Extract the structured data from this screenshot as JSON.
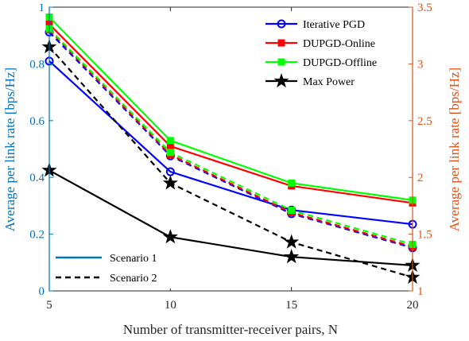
{
  "chart_data": {
    "type": "line",
    "x": [
      5,
      10,
      15,
      20
    ],
    "xlabel": "Number of transmitter-receiver pairs, N",
    "xlim": [
      5,
      20
    ],
    "xticks": [
      "5",
      "10",
      "15",
      "20"
    ],
    "ylabel_left": "Average per link rate [bps/Hz]",
    "ylim_left": [
      0,
      1
    ],
    "yticks_left": [
      "0",
      "0.2",
      "0.4",
      "0.6",
      "0.8",
      "1"
    ],
    "ylabel_right": "Average per link rate [bps/Hz]",
    "ylim_right": [
      1,
      3.5
    ],
    "yticks_right": [
      "1",
      "1.5",
      "2",
      "2.5",
      "3",
      "3.5"
    ],
    "colors": {
      "left_axis": "#0072BD",
      "right_axis": "#D95319",
      "iterative_pgd": "#0000FF",
      "dupgd_online": "#FF0000",
      "dupgd_offline": "#00FF00",
      "max_power": "#000000"
    },
    "legend_methods": [
      {
        "name": "Iterative PGD",
        "color": "#0000FF",
        "marker": "circle"
      },
      {
        "name": "DUPGD-Online",
        "color": "#FF0000",
        "marker": "square"
      },
      {
        "name": "DUPGD-Offline",
        "color": "#00FF00",
        "marker": "square"
      },
      {
        "name": "Max Power",
        "color": "#000000",
        "marker": "star"
      }
    ],
    "legend_scenarios": [
      {
        "name": "Scenario 1",
        "style": "solid"
      },
      {
        "name": "Scenario 2",
        "style": "dashed"
      }
    ],
    "legend_placement_methods": "top-right",
    "legend_placement_scenarios": "bottom-left",
    "series": [
      {
        "method": "Iterative PGD",
        "scenario": "Scenario 1",
        "axis": "left",
        "marker": "circle",
        "color": "#0000FF",
        "dashed": false,
        "values": [
          0.81,
          0.42,
          0.285,
          0.235
        ]
      },
      {
        "method": "DUPGD-Online",
        "scenario": "Scenario 1",
        "axis": "left",
        "marker": "square",
        "color": "#FF0000",
        "dashed": false,
        "values": [
          0.94,
          0.51,
          0.37,
          0.31
        ]
      },
      {
        "method": "DUPGD-Offline",
        "scenario": "Scenario 1",
        "axis": "left",
        "marker": "square",
        "color": "#00FF00",
        "dashed": false,
        "values": [
          0.965,
          0.53,
          0.38,
          0.32
        ]
      },
      {
        "method": "Max Power",
        "scenario": "Scenario 1",
        "axis": "left",
        "marker": "star",
        "color": "#000000",
        "dashed": false,
        "values": [
          0.425,
          0.19,
          0.12,
          0.09
        ]
      },
      {
        "method": "Iterative PGD",
        "scenario": "Scenario 2",
        "axis": "right",
        "marker": "circle",
        "color": "#0000FF",
        "dashed": true,
        "values": [
          3.28,
          2.19,
          1.68,
          1.38
        ]
      },
      {
        "method": "DUPGD-Online",
        "scenario": "Scenario 2",
        "axis": "right",
        "marker": "square",
        "color": "#FF0000",
        "dashed": true,
        "values": [
          3.3,
          2.2,
          1.69,
          1.39
        ]
      },
      {
        "method": "DUPGD-Offline",
        "scenario": "Scenario 2",
        "axis": "right",
        "marker": "square",
        "color": "#00FF00",
        "dashed": true,
        "values": [
          3.31,
          2.22,
          1.71,
          1.41
        ]
      },
      {
        "method": "Max Power",
        "scenario": "Scenario 2",
        "axis": "right",
        "marker": "star",
        "color": "#000000",
        "dashed": true,
        "values": [
          3.15,
          1.95,
          1.43,
          1.12
        ]
      }
    ]
  }
}
